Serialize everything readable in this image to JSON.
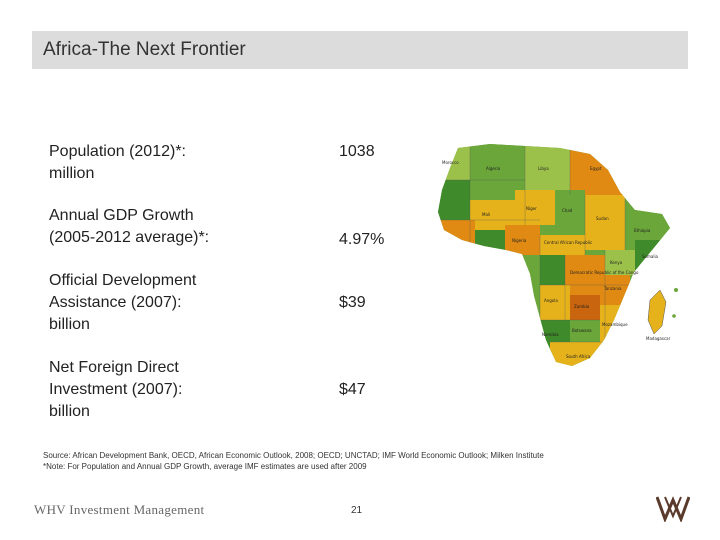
{
  "slide": {
    "title": "Africa-The Next Frontier",
    "page_number": "21",
    "footer_brand": "WHV Investment Management"
  },
  "stats": [
    {
      "label_line1": "Population (2012)*:",
      "label_line2": "million",
      "label_line3": "",
      "value": "1038"
    },
    {
      "label_line1": "Annual GDP Growth",
      "label_line2": "(2005-2012 average)*:",
      "label_line3": "",
      "value": "4.97%"
    },
    {
      "label_line1": "Official Development",
      "label_line2": "Assistance (2007):",
      "label_line3": "billion",
      "value": "$39"
    },
    {
      "label_line1": "Net Foreign Direct",
      "label_line2": "Investment (2007):",
      "label_line3": "billion",
      "value": "$47"
    }
  ],
  "footnotes": {
    "source": "Source: African Development Bank, OECD, African Economic Outlook, 2008; OECD; UNCTAD; IMF World Economic Outlook; Milken Institute",
    "note": "*Note: For Population and Annual GDP Growth, average IMF estimates are used after 2009"
  },
  "map": {
    "labels": {
      "morocco": "Morocco",
      "algeria": "Algeria",
      "libya": "Libya",
      "egypt": "Egypt",
      "mali": "Mali",
      "niger": "Niger",
      "chad": "Chad",
      "sudan": "Sudan",
      "ethiopia": "Ethiopia",
      "nigeria": "Nigeria",
      "drc": "Democratic Republic of the Congo",
      "car": "Central African Republic",
      "angola": "Angola",
      "zambia": "Zambia",
      "tanzania": "Tanzania",
      "namibia": "Namibia",
      "botswana": "Botswana",
      "south_africa": "South Africa",
      "madagascar": "Madagascar",
      "mozambique": "Mozambique",
      "kenya": "Kenya",
      "somalia": "Somalia"
    },
    "colors": {
      "green_dark": "#3f8a2a",
      "green_mid": "#6aa63a",
      "green_light": "#9cc14a",
      "yellow": "#e5b21c",
      "orange": "#e08a14",
      "orange_dark": "#c8650e",
      "ocean_gap": "#ffffff"
    }
  }
}
